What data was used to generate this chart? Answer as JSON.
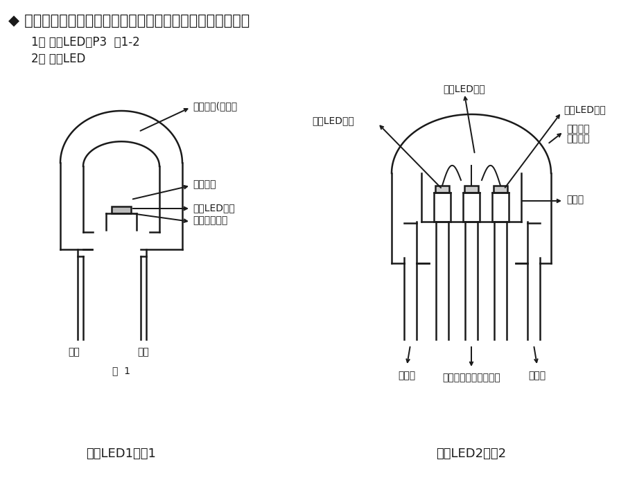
{
  "title": "◆ 发光二极管的构成：管芯支架、管芯晶片、金线、环氧树脂",
  "item1": "1） 单踯LED：P3  图1-2",
  "item2": "2） 白光LED",
  "lbl_mold1": "模制树脂(透镜）",
  "lbl_fluor": "荧光体层",
  "lbl_blue": "蓝色LED芯片",
  "lbl_reflector": "端子兼反光板",
  "lbl_anode": "阳极",
  "lbl_cathode": "阴极",
  "lbl_fig1": "图  1",
  "lbl_led1": "白光LED1：图1",
  "lbl_red_chip": "红色LED芯片",
  "lbl_green_chip": "绿色LED芯片",
  "lbl_blue_chip2": "蓝色LED芯片",
  "lbl_mold2a": "模制树脂",
  "lbl_mold2b": "（透明）",
  "lbl_red_anode": "红阳极",
  "lbl_blue_anode": "蓝阳极",
  "lbl_green_anode": "绿阳极",
  "lbl_common": "公共阴极端子兼反射板",
  "lbl_led2": "白光LED2：图2",
  "bg_color": "#ffffff",
  "line_color": "#1a1a1a",
  "text_color": "#1a1a1a"
}
